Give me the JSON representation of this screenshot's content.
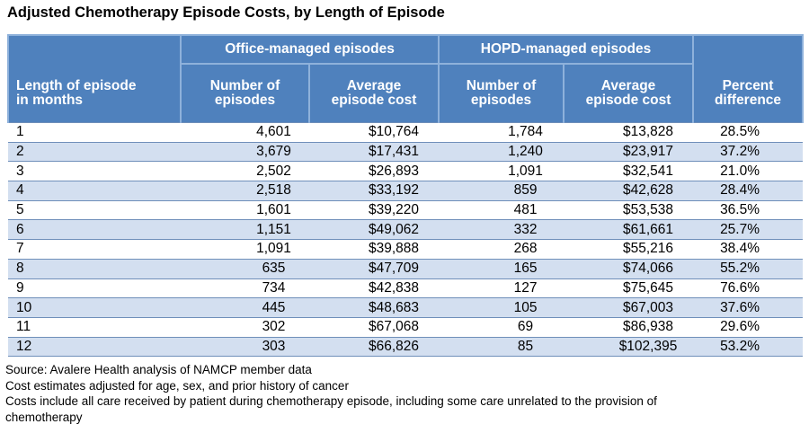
{
  "title": "Adjusted Chemotherapy Episode Costs, by Length of Episode",
  "table": {
    "group_headers": {
      "office": "Office-managed episodes",
      "hopd": "HOPD-managed episodes"
    },
    "column_headers": [
      [
        "Length of episode",
        "in months"
      ],
      [
        "Number of",
        "episodes"
      ],
      [
        "Average",
        "episode cost"
      ],
      [
        "Number of",
        "episodes"
      ],
      [
        "Average",
        "episode cost"
      ],
      [
        "Percent",
        "difference"
      ]
    ],
    "rows": [
      [
        "1",
        "4,601",
        "$10,764",
        "1,784",
        "$13,828",
        "28.5%"
      ],
      [
        "2",
        "3,679",
        "$17,431",
        "1,240",
        "$23,917",
        "37.2%"
      ],
      [
        "3",
        "2,502",
        "$26,893",
        "1,091",
        "$32,541",
        "21.0%"
      ],
      [
        "4",
        "2,518",
        "$33,192",
        "859",
        "$42,628",
        "28.4%"
      ],
      [
        "5",
        "1,601",
        "$39,220",
        "481",
        "$53,538",
        "36.5%"
      ],
      [
        "6",
        "1,151",
        "$49,062",
        "332",
        "$61,661",
        "25.7%"
      ],
      [
        "7",
        "1,091",
        "$39,888",
        "268",
        "$55,216",
        "38.4%"
      ],
      [
        "8",
        "635",
        "$47,709",
        "165",
        "$74,066",
        "55.2%"
      ],
      [
        "9",
        "734",
        "$42,838",
        "127",
        "$75,645",
        "76.6%"
      ],
      [
        "10",
        "445",
        "$48,683",
        "105",
        "$67,003",
        "37.6%"
      ],
      [
        "11",
        "302",
        "$67,068",
        "69",
        "$86,938",
        "29.6%"
      ],
      [
        "12",
        "303",
        "$66,826",
        "85",
        "$102,395",
        "53.2%"
      ]
    ]
  },
  "notes": [
    "Source: Avalere Health analysis of NAMCP member data",
    "Cost estimates adjusted for age, sex, and prior history of cancer",
    "Costs include all care received by patient during chemotherapy episode, including some care unrelated to the provision of",
    "chemotherapy"
  ],
  "colors": {
    "header_background": "#4f81bd",
    "header_text": "#ffffff",
    "band_row": "#d3dff0",
    "rule": "#6f8fba"
  }
}
